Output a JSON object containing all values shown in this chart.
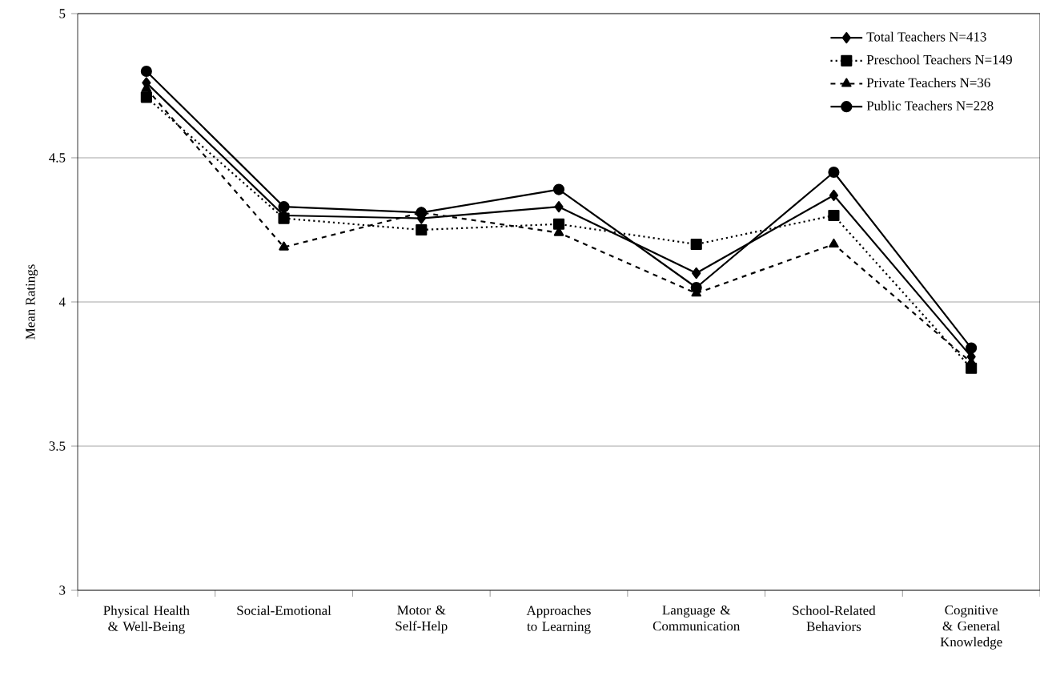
{
  "chart_data": {
    "type": "line",
    "ylabel": "Mean Ratings",
    "categories": [
      "Physical Health & Well-Being",
      "Social-Emotional",
      "Motor & Self-Help",
      "Approaches to Learning",
      "Language & Communication",
      "School-Related Behaviors",
      "Cognitive & General Knowledge"
    ],
    "series": [
      {
        "name": "Total Teachers N=413",
        "color": "#000000",
        "marker": "diamond",
        "line_style": "solid",
        "values": [
          4.76,
          4.3,
          4.29,
          4.33,
          4.1,
          4.37,
          3.81
        ]
      },
      {
        "name": "Preschool Teachers N=149",
        "color": "#000000",
        "marker": "square",
        "line_style": "dotted",
        "values": [
          4.71,
          4.29,
          4.25,
          4.27,
          4.2,
          4.3,
          3.77
        ]
      },
      {
        "name": "Private Teachers N=36",
        "color": "#000000",
        "marker": "triangle",
        "line_style": "dashed",
        "values": [
          4.74,
          4.19,
          4.31,
          4.24,
          4.03,
          4.2,
          3.79
        ]
      },
      {
        "name": "Public Teachers N=228",
        "color": "#000000",
        "marker": "circle",
        "line_style": "solid",
        "values": [
          4.8,
          4.33,
          4.31,
          4.39,
          4.05,
          4.45,
          3.84
        ]
      }
    ],
    "ylim": [
      3,
      5
    ],
    "yticks": [
      3,
      3.5,
      4,
      4.5,
      5
    ],
    "grid": "y",
    "legend": "top right"
  }
}
